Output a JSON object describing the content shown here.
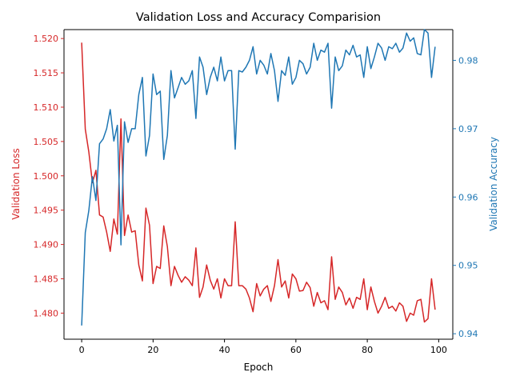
{
  "chart_data": {
    "type": "line",
    "title": "Validation Loss and Accuracy Comparision",
    "xlabel": "Epoch",
    "xlim": [
      -4.95,
      103.95
    ],
    "x_ticks": [
      0,
      20,
      40,
      60,
      80,
      100
    ],
    "left_axis": {
      "label": "Validation Loss",
      "color": "#d62728",
      "ylim": [
        1.4762,
        1.5213
      ],
      "ticks": [
        1.48,
        1.485,
        1.49,
        1.495,
        1.5,
        1.505,
        1.51,
        1.515,
        1.52
      ]
    },
    "right_axis": {
      "label": "Validation Accuracy",
      "color": "#1f77b4",
      "ylim": [
        0.9392,
        0.9845
      ],
      "ticks": [
        0.94,
        0.95,
        0.96,
        0.97,
        0.98
      ]
    },
    "series": [
      {
        "axis": "left",
        "color": "#d62728",
        "x_start": 0,
        "x_step": 1,
        "values": [
          1.5194,
          1.5068,
          1.5035,
          1.499,
          1.5008,
          1.4943,
          1.494,
          1.4918,
          1.489,
          1.4937,
          1.4915,
          1.5083,
          1.4913,
          1.4943,
          1.4918,
          1.492,
          1.487,
          1.4847,
          1.4953,
          1.4928,
          1.4843,
          1.4868,
          1.4865,
          1.4927,
          1.4897,
          1.484,
          1.4868,
          1.4855,
          1.4845,
          1.4853,
          1.4848,
          1.484,
          1.4895,
          1.4823,
          1.4838,
          1.487,
          1.4848,
          1.4835,
          1.485,
          1.4822,
          1.485,
          1.484,
          1.484,
          1.4933,
          1.484,
          1.484,
          1.4835,
          1.4822,
          1.4802,
          1.4843,
          1.4825,
          1.4835,
          1.484,
          1.4817,
          1.484,
          1.4878,
          1.4838,
          1.4847,
          1.4822,
          1.4857,
          1.485,
          1.4832,
          1.4833,
          1.4845,
          1.4837,
          1.481,
          1.483,
          1.4815,
          1.4818,
          1.4805,
          1.4882,
          1.482,
          1.4838,
          1.483,
          1.4812,
          1.4822,
          1.4807,
          1.4823,
          1.482,
          1.485,
          1.4805,
          1.4838,
          1.4817,
          1.48,
          1.481,
          1.4823,
          1.4807,
          1.481,
          1.4803,
          1.4815,
          1.481,
          1.4788,
          1.48,
          1.4797,
          1.4818,
          1.482,
          1.4787,
          1.4792,
          1.485,
          1.4805
        ]
      },
      {
        "axis": "right",
        "color": "#1f77b4",
        "x_start": 0,
        "x_step": 1,
        "values": [
          0.9412,
          0.9548,
          0.958,
          0.963,
          0.9595,
          0.9678,
          0.9685,
          0.97,
          0.9728,
          0.9682,
          0.9705,
          0.953,
          0.971,
          0.968,
          0.97,
          0.97,
          0.975,
          0.9775,
          0.966,
          0.969,
          0.978,
          0.975,
          0.9755,
          0.9655,
          0.969,
          0.9785,
          0.9745,
          0.976,
          0.9775,
          0.9765,
          0.977,
          0.9785,
          0.9715,
          0.9805,
          0.979,
          0.975,
          0.9775,
          0.979,
          0.977,
          0.9805,
          0.977,
          0.9785,
          0.9785,
          0.967,
          0.9785,
          0.9783,
          0.979,
          0.98,
          0.982,
          0.978,
          0.98,
          0.9793,
          0.978,
          0.981,
          0.9785,
          0.974,
          0.9785,
          0.9778,
          0.9805,
          0.9765,
          0.9775,
          0.98,
          0.9795,
          0.978,
          0.979,
          0.9825,
          0.98,
          0.9815,
          0.9812,
          0.9825,
          0.973,
          0.9805,
          0.9785,
          0.9792,
          0.9815,
          0.9808,
          0.9822,
          0.9805,
          0.9808,
          0.9775,
          0.982,
          0.9788,
          0.9805,
          0.9825,
          0.9818,
          0.98,
          0.982,
          0.9817,
          0.9825,
          0.9812,
          0.9818,
          0.984,
          0.9828,
          0.9833,
          0.981,
          0.9808,
          0.9845,
          0.984,
          0.9775,
          0.982
        ]
      }
    ]
  }
}
